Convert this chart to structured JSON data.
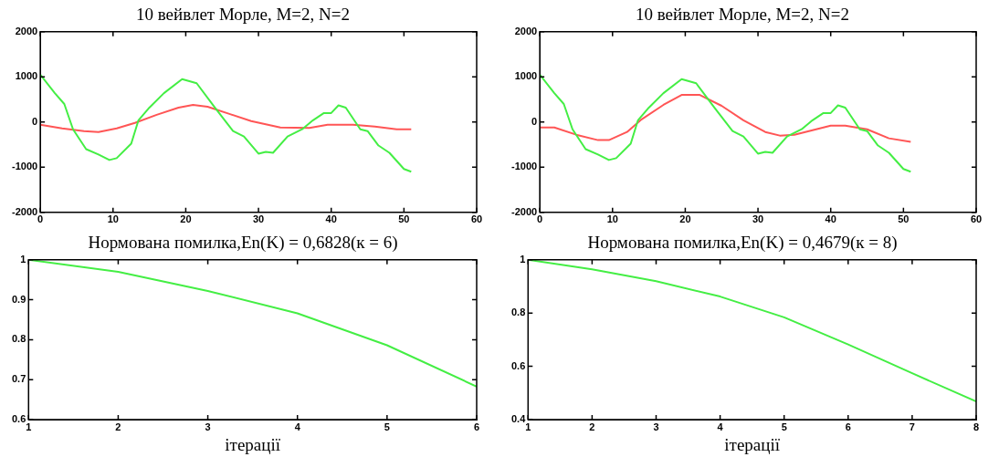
{
  "chart_data": [
    {
      "type": "line",
      "title": "10 вейвлет Морле, M=2, N=2",
      "xlim": [
        0,
        60
      ],
      "xticks": [
        0,
        10,
        20,
        30,
        40,
        50,
        60
      ],
      "ylim": [
        -2000,
        2000
      ],
      "yticks": [
        -2000,
        -1000,
        0,
        1000,
        2000
      ],
      "series": [
        {
          "color": "#44ee44",
          "x": [
            0,
            2,
            3.3,
            4.5,
            6.3,
            8,
            9.5,
            10.5,
            12.5,
            13.5,
            15,
            17,
            19.5,
            21.5,
            24,
            26.5,
            28,
            30,
            31,
            32,
            34,
            36,
            37.5,
            39,
            40,
            41,
            42,
            44,
            45,
            46.5,
            48,
            50,
            51
          ],
          "values": [
            1050,
            640,
            400,
            -160,
            -600,
            -720,
            -840,
            -800,
            -480,
            40,
            320,
            640,
            950,
            860,
            320,
            -200,
            -320,
            -700,
            -660,
            -680,
            -320,
            -160,
            40,
            200,
            200,
            370,
            320,
            -160,
            -200,
            -520,
            -680,
            -1040,
            -1100
          ]
        },
        {
          "color": "#ff5555",
          "x": [
            0,
            3,
            6,
            8,
            10.5,
            13,
            16,
            19,
            21,
            23,
            26,
            29,
            33,
            37,
            39.5,
            43,
            46,
            49,
            51
          ],
          "values": [
            -60,
            -140,
            -200,
            -220,
            -140,
            -20,
            160,
            320,
            380,
            340,
            180,
            20,
            -120,
            -130,
            -60,
            -60,
            -100,
            -160,
            -160
          ]
        }
      ]
    },
    {
      "type": "line",
      "title": "10 вейвлет Морле, M=2, N=2",
      "xlim": [
        0,
        60
      ],
      "xticks": [
        0,
        10,
        20,
        30,
        40,
        50,
        60
      ],
      "ylim": [
        -2000,
        2000
      ],
      "yticks": [
        -2000,
        -1000,
        0,
        1000,
        2000
      ],
      "series": [
        {
          "color": "#44ee44",
          "x": [
            0,
            2,
            3.3,
            4.5,
            6.3,
            8,
            9.5,
            10.5,
            12.5,
            13.5,
            15,
            17,
            19.5,
            21.5,
            24,
            26.5,
            28,
            30,
            31,
            32,
            34,
            36,
            37.5,
            39,
            40,
            41,
            42,
            44,
            45,
            46.5,
            48,
            50,
            51
          ],
          "values": [
            1050,
            640,
            400,
            -160,
            -600,
            -720,
            -840,
            -800,
            -480,
            40,
            320,
            640,
            950,
            860,
            320,
            -200,
            -320,
            -700,
            -660,
            -680,
            -320,
            -160,
            40,
            200,
            200,
            370,
            320,
            -160,
            -200,
            -520,
            -680,
            -1040,
            -1100
          ]
        },
        {
          "color": "#ff5555",
          "x": [
            0,
            2,
            5,
            8,
            9.5,
            12,
            14,
            17,
            19.5,
            22,
            25,
            28,
            31,
            33,
            35,
            38,
            40,
            42,
            45,
            48,
            51
          ],
          "values": [
            -120,
            -120,
            -280,
            -400,
            -400,
            -220,
            60,
            380,
            600,
            600,
            360,
            40,
            -220,
            -300,
            -280,
            -160,
            -80,
            -80,
            -160,
            -360,
            -440
          ]
        }
      ]
    },
    {
      "type": "line",
      "title": "Нормована помилка,En(K) = 0,6828(к = 6)",
      "xlabel": "ітерації",
      "xlim": [
        1,
        6
      ],
      "xticks": [
        1,
        2,
        3,
        4,
        5,
        6
      ],
      "ylim": [
        0.6,
        1
      ],
      "yticks": [
        0.6,
        0.7,
        0.8,
        0.9,
        1
      ],
      "series": [
        {
          "color": "#44ee44",
          "x": [
            1,
            2,
            3,
            4,
            5,
            6
          ],
          "values": [
            1,
            0.97,
            0.922,
            0.866,
            0.786,
            0.6828
          ]
        }
      ]
    },
    {
      "type": "line",
      "title": "Нормована помилка,En(K) = 0,4679(к = 8)",
      "xlabel": "ітерації",
      "xlim": [
        1,
        8
      ],
      "xticks": [
        1,
        2,
        3,
        4,
        5,
        6,
        7,
        8
      ],
      "ylim": [
        0.4,
        1
      ],
      "yticks": [
        0.4,
        0.6,
        0.8,
        1
      ],
      "series": [
        {
          "color": "#44ee44",
          "x": [
            1,
            2,
            3,
            4,
            5,
            6,
            7,
            8
          ],
          "values": [
            1,
            0.964,
            0.92,
            0.862,
            0.784,
            0.682,
            0.574,
            0.4679
          ]
        }
      ]
    }
  ]
}
